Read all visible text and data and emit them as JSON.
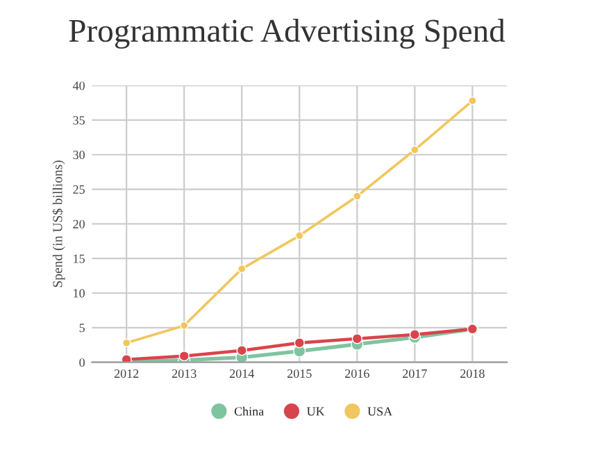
{
  "chart_data": {
    "type": "line",
    "title": "Programmatic Advertising Spend",
    "ylabel": "Spend (in US$ billions)",
    "categories": [
      "2012",
      "2013",
      "2014",
      "2015",
      "2016",
      "2017",
      "2018"
    ],
    "series": [
      {
        "name": "China",
        "color": "#7fc4a0",
        "values": [
          0.1,
          0.3,
          0.7,
          1.6,
          2.6,
          3.6,
          4.8
        ]
      },
      {
        "name": "UK",
        "color": "#d9434b",
        "values": [
          0.4,
          0.9,
          1.7,
          2.8,
          3.4,
          4.0,
          4.8
        ]
      },
      {
        "name": "USA",
        "color": "#f0c75e",
        "values": [
          2.8,
          5.3,
          13.5,
          18.3,
          24.0,
          30.7,
          37.8
        ]
      }
    ],
    "ylim": [
      0,
      40
    ],
    "yticks": [
      0,
      5,
      10,
      15,
      20,
      25,
      30,
      35,
      40
    ],
    "grid": true,
    "legend": "bottom",
    "marker": "circle",
    "line_style": "solid"
  }
}
